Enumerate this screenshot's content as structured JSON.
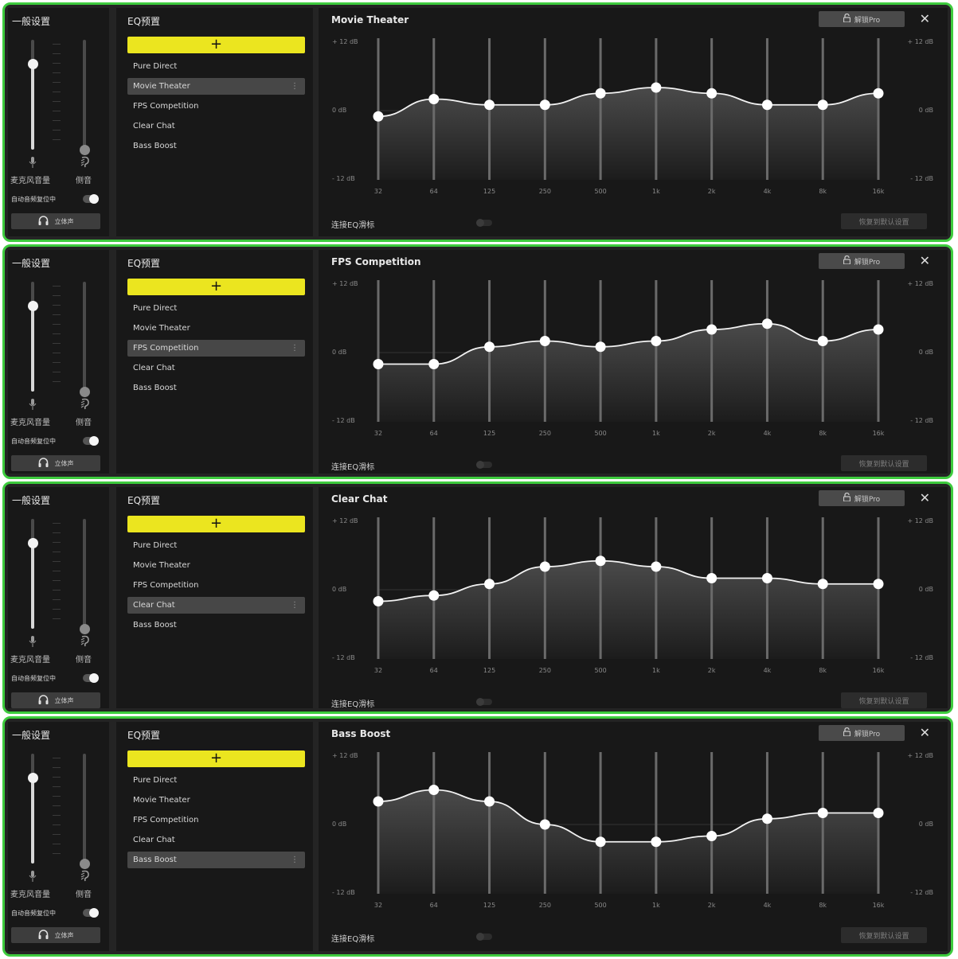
{
  "common": {
    "general_title": "一般设置",
    "mic_volume_label": "麦克风音量",
    "sidetone_label": "侧音",
    "auto_center_label": "自动音频复位中",
    "stereo_label": "立体声",
    "presets_title": "EQ预置",
    "add_label": "+",
    "presets": [
      "Pure Direct",
      "Movie Theater",
      "FPS Competition",
      "Clear Chat",
      "Bass Boost"
    ],
    "unlock_label": "解锁Pro",
    "db_top": "+ 12 dB",
    "db_mid": "0 dB",
    "db_bottom": "- 12 dB",
    "bands": [
      "32",
      "64",
      "125",
      "250",
      "500",
      "1k",
      "2k",
      "4k",
      "8k",
      "16k"
    ],
    "link_label": "连接EQ滑标",
    "reset_label": "恢复到默认设置",
    "close_label": "✕",
    "more_label": "⋮",
    "accent_color": "#ebe51f",
    "border_color": "#3ecb3e"
  },
  "panels": [
    {
      "title": "Movie Theater",
      "selected_index": 1,
      "mic_level": 0.78,
      "sidetone_level": 0.0,
      "gains_db": [
        -1,
        2,
        1,
        1,
        3,
        4,
        3,
        1,
        1,
        3
      ]
    },
    {
      "title": "FPS Competition",
      "selected_index": 2,
      "mic_level": 0.78,
      "sidetone_level": 0.0,
      "gains_db": [
        -2,
        -2,
        1,
        2,
        1,
        2,
        4,
        5,
        2,
        4
      ]
    },
    {
      "title": "Clear Chat",
      "selected_index": 3,
      "mic_level": 0.78,
      "sidetone_level": 0.0,
      "gains_db": [
        -2,
        -1,
        1,
        4,
        5,
        4,
        2,
        2,
        1,
        1
      ]
    },
    {
      "title": "Bass Boost",
      "selected_index": 4,
      "mic_level": 0.78,
      "sidetone_level": 0.0,
      "gains_db": [
        4,
        6,
        4,
        0,
        -3,
        -3,
        -2,
        1,
        2,
        2
      ]
    }
  ]
}
